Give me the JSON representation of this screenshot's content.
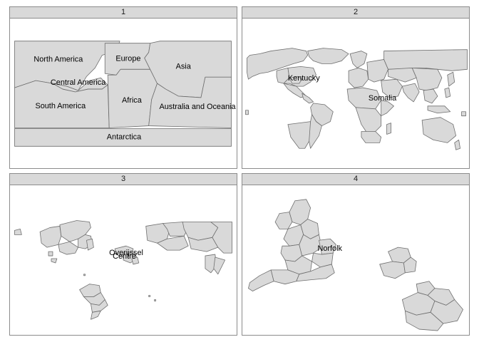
{
  "panels": [
    {
      "title": "1",
      "labels": [
        "North America",
        "Europe",
        "Asia",
        "Central America",
        "Africa",
        "South America",
        "Australia and Oceania",
        "Antarctica"
      ]
    },
    {
      "title": "2",
      "labels": [
        "Kentucky",
        "Somalia"
      ]
    },
    {
      "title": "3",
      "labels": [
        "Overijssel",
        "Centre"
      ]
    },
    {
      "title": "4",
      "labels": [
        "Norfolk"
      ]
    }
  ],
  "colors": {
    "fill": "#d9d9d9",
    "border": "#6e6e6e",
    "strip": "#d9d9d9"
  }
}
